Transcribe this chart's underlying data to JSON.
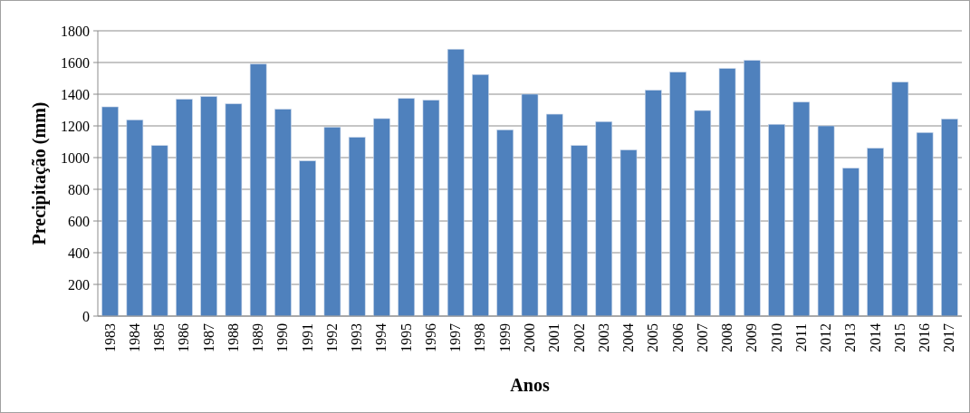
{
  "chart_data": {
    "type": "bar",
    "xlabel": "Anos",
    "ylabel": "Precipitação (mm)",
    "categories": [
      "1983",
      "1984",
      "1985",
      "1986",
      "1987",
      "1988",
      "1989",
      "1990",
      "1991",
      "1992",
      "1993",
      "1994",
      "1995",
      "1996",
      "1997",
      "1998",
      "1999",
      "2000",
      "2001",
      "2002",
      "2003",
      "2004",
      "2005",
      "2006",
      "2007",
      "2008",
      "2009",
      "2010",
      "2011",
      "2012",
      "2013",
      "2014",
      "2015",
      "2016",
      "2017"
    ],
    "values": [
      1320,
      1238,
      1076,
      1368,
      1385,
      1339,
      1590,
      1305,
      979,
      1192,
      1128,
      1246,
      1373,
      1362,
      1684,
      1524,
      1175,
      1400,
      1274,
      1076,
      1227,
      1048,
      1425,
      1539,
      1297,
      1562,
      1613,
      1210,
      1350,
      1200,
      933,
      1059,
      1476,
      1158,
      1244
    ],
    "color": "#4f81bd",
    "ylim": [
      0,
      1800
    ],
    "yticks": [
      0,
      200,
      400,
      600,
      800,
      1000,
      1200,
      1400,
      1600,
      1800
    ],
    "grid": "y"
  }
}
